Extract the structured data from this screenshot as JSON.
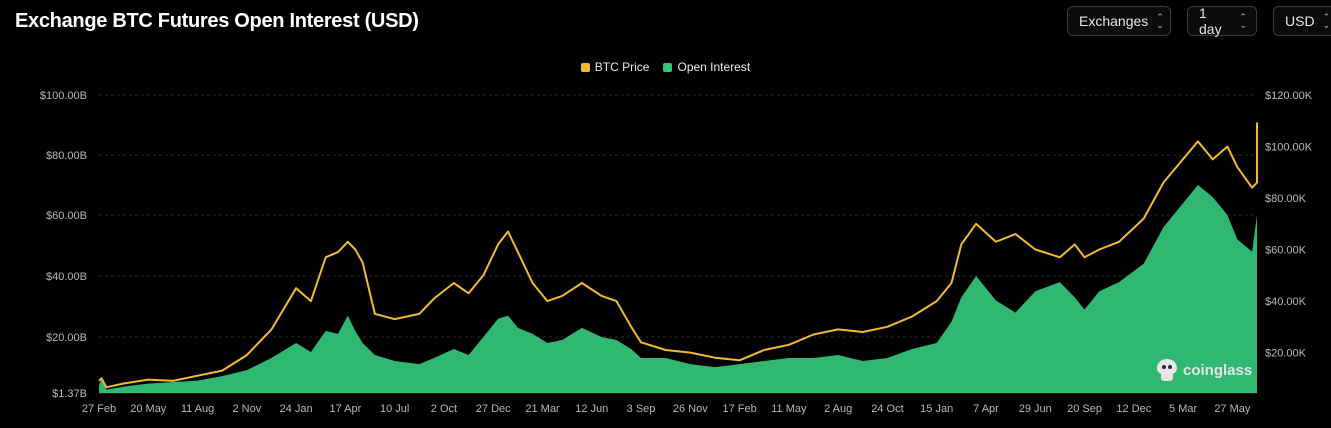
{
  "header": {
    "title": "Exchange BTC Futures Open Interest (USD)",
    "controls": [
      {
        "id": "exchanges",
        "label": "Exchanges"
      },
      {
        "id": "interval",
        "label": "1 day"
      },
      {
        "id": "currency",
        "label": "USD"
      }
    ]
  },
  "watermark": "coinglass",
  "colors": {
    "btc_price": "#f3ba2f",
    "open_interest": "#34c77b",
    "background": "#000000",
    "grid": "#2a2a2a",
    "axis_text": "#b8b8b8"
  },
  "chart_data": {
    "type": "area",
    "title": "Exchange BTC Futures Open Interest (USD)",
    "legend": {
      "placement": "top-center",
      "entries": [
        "BTC Price",
        "Open Interest"
      ]
    },
    "x_tick_labels": [
      "27 Feb",
      "20 May",
      "11 Aug",
      "2 Nov",
      "24 Jan",
      "17 Apr",
      "10 Jul",
      "2 Oct",
      "27 Dec",
      "21 Mar",
      "12 Jun",
      "3 Sep",
      "26 Nov",
      "17 Feb",
      "11 May",
      "2 Aug",
      "24 Oct",
      "15 Jan",
      "7 Apr",
      "29 Jun",
      "20 Sep",
      "12 Dec",
      "5 Mar",
      "27 May"
    ],
    "y_left": {
      "tick_labels": [
        "$1.37B",
        "$20.00B",
        "$40.00B",
        "$60.00B",
        "$80.00B",
        "$100.00B"
      ],
      "tick_values": [
        1.37,
        20,
        40,
        60,
        80,
        100
      ],
      "range": [
        1.37,
        100
      ],
      "unit": "USD billions"
    },
    "y_right": {
      "tick_labels": [
        "$20.00K",
        "$40.00K",
        "$60.00K",
        "$80.00K",
        "$100.00K",
        "$120.00K"
      ],
      "tick_values": [
        20,
        40,
        60,
        80,
        100,
        120
      ],
      "range": [
        4.3,
        120
      ],
      "unit": "USD thousands"
    },
    "grid": true,
    "x_index_range": [
      0,
      23.5
    ],
    "series": [
      {
        "name": "Open Interest",
        "axis": "left",
        "style": "area",
        "points": [
          [
            0,
            4
          ],
          [
            0.05,
            6
          ],
          [
            0.15,
            2.5
          ],
          [
            0.5,
            3.5
          ],
          [
            1,
            4.5
          ],
          [
            1.5,
            5
          ],
          [
            2,
            5.5
          ],
          [
            2.5,
            7
          ],
          [
            3,
            9
          ],
          [
            3.5,
            13
          ],
          [
            4,
            18
          ],
          [
            4.3,
            15
          ],
          [
            4.6,
            22
          ],
          [
            4.85,
            21
          ],
          [
            5.05,
            27
          ],
          [
            5.2,
            22
          ],
          [
            5.35,
            18
          ],
          [
            5.6,
            14
          ],
          [
            6,
            12
          ],
          [
            6.5,
            11
          ],
          [
            6.8,
            13
          ],
          [
            7.2,
            16
          ],
          [
            7.5,
            14
          ],
          [
            7.8,
            20
          ],
          [
            8.1,
            26
          ],
          [
            8.3,
            27
          ],
          [
            8.5,
            23
          ],
          [
            8.8,
            21
          ],
          [
            9.1,
            18
          ],
          [
            9.4,
            19
          ],
          [
            9.8,
            23
          ],
          [
            10.2,
            20
          ],
          [
            10.5,
            19
          ],
          [
            10.8,
            16
          ],
          [
            11,
            13
          ],
          [
            11.5,
            13
          ],
          [
            12,
            11
          ],
          [
            12.5,
            10
          ],
          [
            13,
            11
          ],
          [
            13.5,
            12
          ],
          [
            14,
            13
          ],
          [
            14.5,
            13
          ],
          [
            15,
            14
          ],
          [
            15.5,
            12
          ],
          [
            16,
            13
          ],
          [
            16.5,
            16
          ],
          [
            17,
            18
          ],
          [
            17.3,
            25
          ],
          [
            17.5,
            33
          ],
          [
            17.8,
            40
          ],
          [
            18.2,
            32
          ],
          [
            18.6,
            28
          ],
          [
            19,
            35
          ],
          [
            19.5,
            38
          ],
          [
            19.8,
            33
          ],
          [
            20,
            29
          ],
          [
            20.3,
            35
          ],
          [
            20.7,
            38
          ],
          [
            21.2,
            44
          ],
          [
            21.6,
            56
          ],
          [
            22.3,
            70
          ],
          [
            22.6,
            66
          ],
          [
            22.9,
            60
          ],
          [
            23.1,
            52
          ],
          [
            23.4,
            48
          ],
          [
            23.6,
            60
          ],
          [
            23.8,
            73
          ],
          [
            24,
            68
          ],
          [
            24.2,
            76
          ],
          [
            24.4,
            80
          ],
          [
            24.55,
            70
          ],
          [
            24.7,
            78
          ],
          [
            24.85,
            74
          ],
          [
            25.0,
            79
          ],
          [
            25.15,
            76
          ],
          [
            25.3,
            72
          ],
          [
            25.5,
            78
          ],
          [
            25.7,
            70
          ],
          [
            25.9,
            66
          ]
        ]
      },
      {
        "name": "BTC Price",
        "axis": "right",
        "style": "line",
        "points": [
          [
            0,
            9
          ],
          [
            0.05,
            10
          ],
          [
            0.15,
            6.5
          ],
          [
            0.5,
            8
          ],
          [
            1,
            9.5
          ],
          [
            1.5,
            9
          ],
          [
            2,
            11
          ],
          [
            2.5,
            13
          ],
          [
            3,
            19
          ],
          [
            3.5,
            29
          ],
          [
            4,
            45
          ],
          [
            4.3,
            40
          ],
          [
            4.6,
            57
          ],
          [
            4.85,
            59
          ],
          [
            5.05,
            63
          ],
          [
            5.2,
            60
          ],
          [
            5.35,
            55
          ],
          [
            5.6,
            35
          ],
          [
            6,
            33
          ],
          [
            6.5,
            35
          ],
          [
            6.8,
            41
          ],
          [
            7.2,
            47
          ],
          [
            7.5,
            43
          ],
          [
            7.8,
            50
          ],
          [
            8.1,
            62
          ],
          [
            8.3,
            67
          ],
          [
            8.5,
            59
          ],
          [
            8.8,
            47
          ],
          [
            9.1,
            40
          ],
          [
            9.4,
            42
          ],
          [
            9.8,
            47
          ],
          [
            10.2,
            42
          ],
          [
            10.5,
            40
          ],
          [
            10.8,
            30
          ],
          [
            11,
            24
          ],
          [
            11.5,
            21
          ],
          [
            12,
            20
          ],
          [
            12.5,
            18
          ],
          [
            13,
            17
          ],
          [
            13.5,
            21
          ],
          [
            14,
            23
          ],
          [
            14.5,
            27
          ],
          [
            15,
            29
          ],
          [
            15.5,
            28
          ],
          [
            16,
            30
          ],
          [
            16.5,
            34
          ],
          [
            17,
            40
          ],
          [
            17.3,
            47
          ],
          [
            17.5,
            62
          ],
          [
            17.8,
            70
          ],
          [
            18.2,
            63
          ],
          [
            18.6,
            66
          ],
          [
            19,
            60
          ],
          [
            19.5,
            57
          ],
          [
            19.8,
            62
          ],
          [
            20,
            57
          ],
          [
            20.3,
            60
          ],
          [
            20.7,
            63
          ],
          [
            21.2,
            72
          ],
          [
            21.6,
            86
          ],
          [
            22.3,
            102
          ],
          [
            22.6,
            95
          ],
          [
            22.9,
            100
          ],
          [
            23.1,
            92
          ],
          [
            23.4,
            84
          ],
          [
            23.6,
            86
          ],
          [
            23.8,
            103
          ],
          [
            24,
            97
          ],
          [
            24.2,
            104
          ],
          [
            24.4,
            109
          ],
          [
            24.55,
            102
          ],
          [
            24.7,
            108
          ],
          [
            24.85,
            104
          ],
          [
            25.0,
            106
          ],
          [
            25.15,
            100
          ],
          [
            25.3,
            97
          ],
          [
            25.5,
            103
          ],
          [
            25.7,
            108
          ],
          [
            25.9,
            105
          ]
        ]
      }
    ]
  }
}
